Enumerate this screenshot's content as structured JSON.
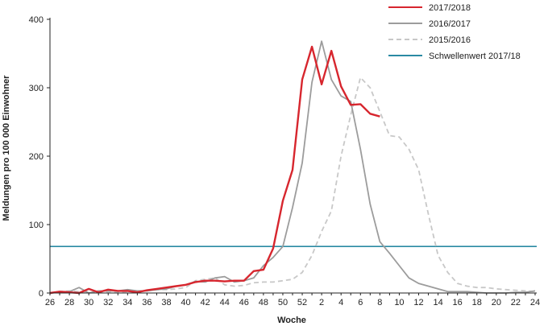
{
  "chart_data": {
    "type": "line",
    "xlabel": "Woche",
    "ylabel": "Meldungen pro 100 000 Einwohner",
    "ylim": [
      0,
      400
    ],
    "yticks": [
      "0",
      "100",
      "200",
      "300",
      "400"
    ],
    "weeks": [
      "26",
      "27",
      "28",
      "29",
      "30",
      "31",
      "32",
      "33",
      "34",
      "35",
      "36",
      "37",
      "38",
      "39",
      "40",
      "41",
      "42",
      "43",
      "44",
      "45",
      "46",
      "47",
      "48",
      "49",
      "50",
      "51",
      "52",
      "1",
      "2",
      "3",
      "4",
      "5",
      "6",
      "7",
      "8",
      "9",
      "10",
      "11",
      "12",
      "13",
      "14",
      "15",
      "16",
      "17",
      "18",
      "19",
      "20",
      "21",
      "22",
      "23",
      "24"
    ],
    "xticks": [
      "26",
      "28",
      "30",
      "32",
      "34",
      "36",
      "38",
      "40",
      "42",
      "44",
      "46",
      "48",
      "50",
      "52",
      "2",
      "4",
      "6",
      "8",
      "10",
      "12",
      "14",
      "16",
      "18",
      "20",
      "22",
      "24"
    ],
    "legend_position": "top-right",
    "series": [
      {
        "name": "2017/2018",
        "color": "#d7262e",
        "style": "solid",
        "values": [
          0,
          2,
          1,
          0,
          6,
          1,
          5,
          3,
          3,
          1,
          4,
          6,
          8,
          10,
          12,
          16,
          18,
          18,
          17,
          18,
          18,
          32,
          34,
          65,
          135,
          180,
          312,
          360,
          305,
          354,
          302,
          275,
          276,
          262,
          258
        ]
      },
      {
        "name": "2016/2017",
        "color": "#9c9c9c",
        "style": "solid",
        "values": [
          0,
          2,
          2,
          8,
          0,
          3,
          3,
          3,
          5,
          3,
          3,
          5,
          6,
          10,
          12,
          17,
          16,
          22,
          24,
          16,
          18,
          22,
          40,
          52,
          68,
          125,
          190,
          308,
          368,
          312,
          288,
          280,
          210,
          130,
          75,
          58,
          40,
          22,
          14,
          10,
          6,
          2,
          2,
          2,
          1,
          0,
          0,
          0,
          1,
          1,
          3
        ]
      },
      {
        "name": "2015/2016",
        "color": "#c8c8c8",
        "style": "dashed",
        "values": [
          0,
          2,
          3,
          2,
          0,
          1,
          2,
          1,
          2,
          2,
          3,
          5,
          5,
          6,
          8,
          18,
          20,
          22,
          12,
          10,
          11,
          15,
          16,
          16,
          18,
          20,
          30,
          55,
          90,
          120,
          200,
          260,
          315,
          300,
          265,
          230,
          228,
          210,
          180,
          115,
          55,
          30,
          14,
          10,
          8,
          8,
          6,
          5,
          4,
          3,
          2
        ]
      }
    ],
    "threshold": {
      "name": "Schwellenwert 2017/18",
      "value": 68,
      "color": "#2a8aa3"
    }
  }
}
